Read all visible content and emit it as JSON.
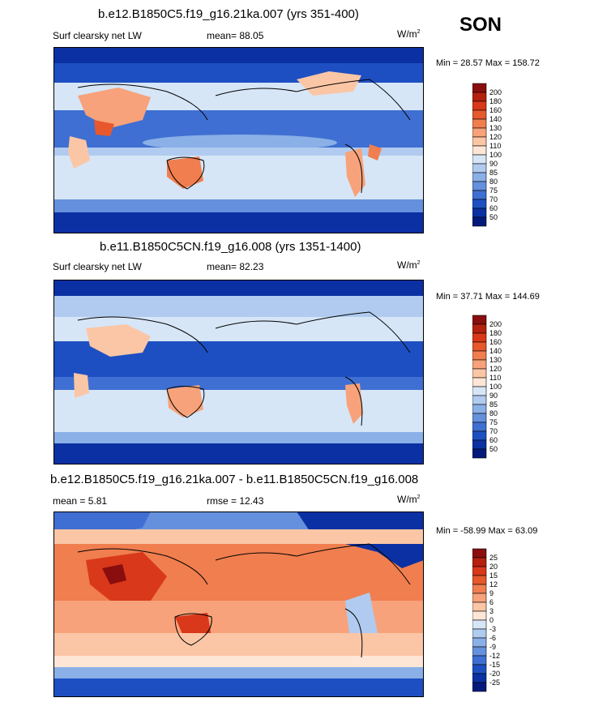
{
  "season": "SON",
  "panels": [
    {
      "id": "p1",
      "title": "b.e12.B1850C5.f19_g16.21ka.007 (yrs 351-400)",
      "left_label": "Surf clearsky net LW",
      "mean_label": "mean=",
      "mean_value": "88.05",
      "rmse_label": "",
      "rmse_value": "",
      "units_base": "W/m",
      "units_exp": "2",
      "min_label": "Min =",
      "min_value": "28.57",
      "max_label": "Max =",
      "max_value": "158.72",
      "levels": [
        "200",
        "180",
        "160",
        "140",
        "130",
        "120",
        "110",
        "100",
        "90",
        "85",
        "80",
        "75",
        "70",
        "60",
        "50"
      ],
      "colors": [
        "#8a0e0e",
        "#b5200f",
        "#d9381a",
        "#e7582c",
        "#f07e4f",
        "#f7a27a",
        "#fbc6a6",
        "#fde6d6",
        "#d6e6f7",
        "#b0cbef",
        "#8ab0e7",
        "#6590dd",
        "#3f6fd2",
        "#1e4fc2",
        "#0a30a3",
        "#041a7a"
      ]
    },
    {
      "id": "p2",
      "title": "b.e11.B1850C5CN.f19_g16.008 (yrs 1351-1400)",
      "left_label": "Surf clearsky net LW",
      "mean_label": "mean=",
      "mean_value": "82.23",
      "rmse_label": "",
      "rmse_value": "",
      "units_base": "W/m",
      "units_exp": "2",
      "min_label": "Min =",
      "min_value": "37.71",
      "max_label": "Max =",
      "max_value": "144.69",
      "levels": [
        "200",
        "180",
        "160",
        "140",
        "130",
        "120",
        "110",
        "100",
        "90",
        "85",
        "80",
        "75",
        "70",
        "60",
        "50"
      ],
      "colors": [
        "#8a0e0e",
        "#b5200f",
        "#d9381a",
        "#e7582c",
        "#f07e4f",
        "#f7a27a",
        "#fbc6a6",
        "#fde6d6",
        "#d6e6f7",
        "#b0cbef",
        "#8ab0e7",
        "#6590dd",
        "#3f6fd2",
        "#1e4fc2",
        "#0a30a3",
        "#041a7a"
      ]
    },
    {
      "id": "p3",
      "title": "b.e12.B1850C5.f19_g16.21ka.007 - b.e11.B1850C5CN.f19_g16.008",
      "left_label": "",
      "mean_label": "mean =",
      "mean_value": "5.81",
      "rmse_label": "rmse =",
      "rmse_value": "12.43",
      "units_base": "W/m",
      "units_exp": "2",
      "min_label": "Min =",
      "min_value": "-58.99",
      "max_label": "Max =",
      "max_value": "63.09",
      "levels": [
        "25",
        "20",
        "15",
        "12",
        "9",
        "6",
        "3",
        "0",
        "-3",
        "-6",
        "-9",
        "-12",
        "-15",
        "-20",
        "-25"
      ],
      "colors": [
        "#8a0e0e",
        "#b5200f",
        "#d9381a",
        "#e7582c",
        "#f07e4f",
        "#f7a27a",
        "#fbc6a6",
        "#fde6d6",
        "#d6e6f7",
        "#b0cbef",
        "#8ab0e7",
        "#6590dd",
        "#3f6fd2",
        "#1e4fc2",
        "#0a30a3",
        "#041a7a"
      ]
    }
  ]
}
